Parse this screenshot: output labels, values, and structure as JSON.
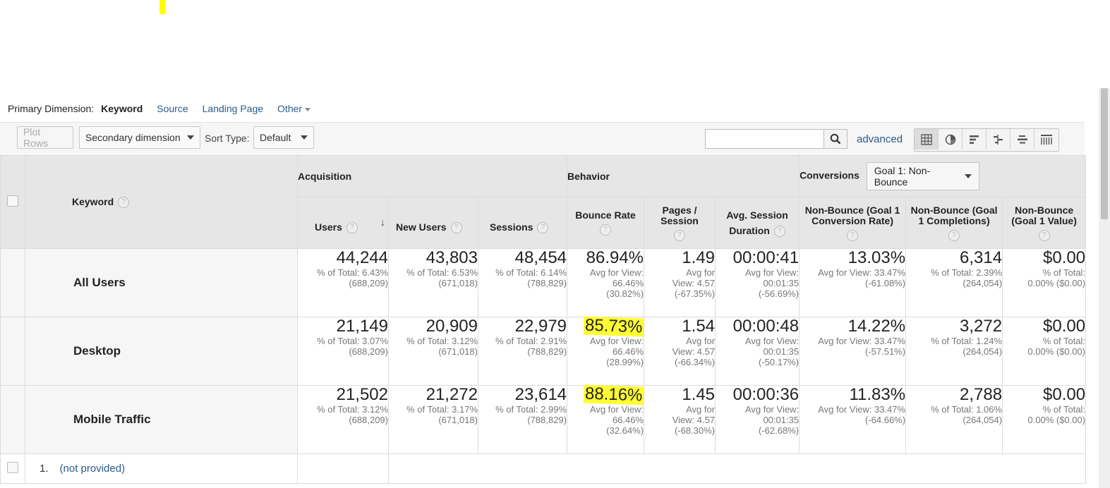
{
  "primary_dimension": {
    "label": "Primary Dimension:",
    "active": "Keyword",
    "links": [
      "Source",
      "Landing Page",
      "Other"
    ]
  },
  "toolbar": {
    "plot_rows": "Plot Rows",
    "secondary_dimension": "Secondary dimension",
    "sort_type_label": "Sort Type:",
    "sort_type_value": "Default",
    "search_value": "",
    "advanced": "advanced",
    "view_icons": [
      "table-view-icon",
      "pie-view-icon",
      "bar-view-icon",
      "comparison-view-icon",
      "term-cloud-view-icon",
      "pivot-view-icon"
    ]
  },
  "table": {
    "keyword_header": "Keyword",
    "groups": {
      "acquisition": "Acquisition",
      "behavior": "Behavior",
      "conversions": "Conversions",
      "goal_select": "Goal 1: Non-Bounce"
    },
    "columns": [
      {
        "l1": "Users",
        "l2": ""
      },
      {
        "l1": "New Users",
        "l2": ""
      },
      {
        "l1": "Sessions",
        "l2": ""
      },
      {
        "l1": "Bounce Rate",
        "l2": ""
      },
      {
        "l1": "Pages /",
        "l2": "Session"
      },
      {
        "l1": "Avg. Session",
        "l2": "Duration"
      },
      {
        "l1": "Non-Bounce (Goal 1",
        "l2": "Conversion Rate)"
      },
      {
        "l1": "Non-Bounce (Goal",
        "l2": "1 Completions)"
      },
      {
        "l1": "Non-Bounce",
        "l2": "(Goal 1 Value)"
      }
    ],
    "rows": [
      {
        "label": "All Users",
        "cells": [
          {
            "value": "44,244",
            "sub1": "% of Total: 6.43%",
            "sub2": "(688,209)",
            "sub3": ""
          },
          {
            "value": "43,803",
            "sub1": "% of Total: 6.53%",
            "sub2": "(671,018)",
            "sub3": ""
          },
          {
            "value": "48,454",
            "sub1": "% of Total: 6.14%",
            "sub2": "(788,829)",
            "sub3": ""
          },
          {
            "value": "86.94%",
            "sub1": "Avg for View:",
            "sub2": "66.46%",
            "sub3": "(30.82%)"
          },
          {
            "value": "1.49",
            "sub1": "Avg for",
            "sub2": "View: 4.57",
            "sub3": "(-67.35%)"
          },
          {
            "value": "00:00:41",
            "sub1": "Avg for View:",
            "sub2": "00:01:35",
            "sub3": "(-56.69%)"
          },
          {
            "value": "13.03%",
            "sub1": "Avg for View: 33.47%",
            "sub2": "(-61.08%)",
            "sub3": ""
          },
          {
            "value": "6,314",
            "sub1": "% of Total: 2.39%",
            "sub2": "(264,054)",
            "sub3": ""
          },
          {
            "value": "$0.00",
            "sub1": "% of Total:",
            "sub2": "0.00% ($0.00)",
            "sub3": ""
          }
        ]
      },
      {
        "label": "Desktop",
        "cells": [
          {
            "value": "21,149",
            "sub1": "% of Total: 3.07%",
            "sub2": "(688,209)",
            "sub3": ""
          },
          {
            "value": "20,909",
            "sub1": "% of Total: 3.12%",
            "sub2": "(671,018)",
            "sub3": ""
          },
          {
            "value": "22,979",
            "sub1": "% of Total: 2.91%",
            "sub2": "(788,829)",
            "sub3": ""
          },
          {
            "value": "85.73%",
            "sub1": "Avg for View:",
            "sub2": "66.46%",
            "sub3": "(28.99%)"
          },
          {
            "value": "1.54",
            "sub1": "Avg for",
            "sub2": "View: 4.57",
            "sub3": "(-66.34%)"
          },
          {
            "value": "00:00:48",
            "sub1": "Avg for View:",
            "sub2": "00:01:35",
            "sub3": "(-50.17%)"
          },
          {
            "value": "14.22%",
            "sub1": "Avg for View: 33.47%",
            "sub2": "(-57.51%)",
            "sub3": ""
          },
          {
            "value": "3,272",
            "sub1": "% of Total: 1.24%",
            "sub2": "(264,054)",
            "sub3": ""
          },
          {
            "value": "$0.00",
            "sub1": "% of Total:",
            "sub2": "0.00% ($0.00)",
            "sub3": ""
          }
        ]
      },
      {
        "label": "Mobile Traffic",
        "cells": [
          {
            "value": "21,502",
            "sub1": "% of Total: 3.12%",
            "sub2": "(688,209)",
            "sub3": ""
          },
          {
            "value": "21,272",
            "sub1": "% of Total: 3.17%",
            "sub2": "(671,018)",
            "sub3": ""
          },
          {
            "value": "23,614",
            "sub1": "% of Total: 2.99%",
            "sub2": "(788,829)",
            "sub3": ""
          },
          {
            "value": "88.16%",
            "sub1": "Avg for View:",
            "sub2": "66.46%",
            "sub3": "(32.64%)"
          },
          {
            "value": "1.45",
            "sub1": "Avg for",
            "sub2": "View: 4.57",
            "sub3": "(-68.30%)"
          },
          {
            "value": "00:00:36",
            "sub1": "Avg for View:",
            "sub2": "00:01:35",
            "sub3": "(-62.68%)"
          },
          {
            "value": "11.83%",
            "sub1": "Avg for View: 33.47%",
            "sub2": "(-64.66%)",
            "sub3": ""
          },
          {
            "value": "2,788",
            "sub1": "% of Total: 1.06%",
            "sub2": "(264,054)",
            "sub3": ""
          },
          {
            "value": "$0.00",
            "sub1": "% of Total:",
            "sub2": "0.00% ($0.00)",
            "sub3": ""
          }
        ]
      }
    ],
    "first_row": {
      "index": "1.",
      "keyword": "(not provided)"
    }
  },
  "colors": {
    "link": "#2b5a8c",
    "highlight": "#ffff33",
    "header_bg": "#e6e6e6"
  }
}
